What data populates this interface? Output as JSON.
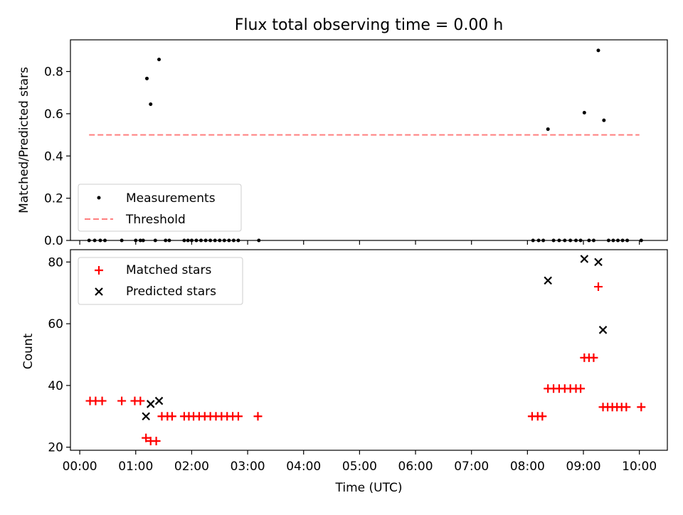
{
  "title": "Flux total observing time = 0.00 h",
  "colors": {
    "measurement": "#000000",
    "threshold": "#ff7f7f",
    "matched": "#ff0000",
    "predicted": "#000000"
  },
  "chart_data": [
    {
      "type": "scatter",
      "panel": "top",
      "title": "Flux total observing time = 0.00 h",
      "xlabel": "",
      "ylabel": "Matched/Predicted stars",
      "xlim": [
        "23:50",
        "10:30"
      ],
      "ylim": [
        0,
        0.95
      ],
      "yticks": [
        0.0,
        0.2,
        0.4,
        0.6,
        0.8
      ],
      "ytick_labels": [
        "0.0",
        "0.2",
        "0.4",
        "0.6",
        "0.8"
      ],
      "legend_position": "lower-left",
      "series": [
        {
          "name": "Measurements",
          "kind": "points",
          "points": [
            {
              "x": "00:10",
              "y": 0
            },
            {
              "x": "00:16",
              "y": 0
            },
            {
              "x": "00:22",
              "y": 0
            },
            {
              "x": "00:27",
              "y": 0
            },
            {
              "x": "00:45",
              "y": 0
            },
            {
              "x": "01:00",
              "y": 0
            },
            {
              "x": "01:05",
              "y": 0
            },
            {
              "x": "01:08",
              "y": 0
            },
            {
              "x": "01:12",
              "y": 0.767
            },
            {
              "x": "01:16",
              "y": 0.645
            },
            {
              "x": "01:21",
              "y": 0
            },
            {
              "x": "01:25",
              "y": 0.857
            },
            {
              "x": "01:32",
              "y": 0
            },
            {
              "x": "01:36",
              "y": 0
            },
            {
              "x": "01:52",
              "y": 0
            },
            {
              "x": "01:56",
              "y": 0
            },
            {
              "x": "02:00",
              "y": 0
            },
            {
              "x": "02:05",
              "y": 0
            },
            {
              "x": "02:10",
              "y": 0
            },
            {
              "x": "02:15",
              "y": 0
            },
            {
              "x": "02:20",
              "y": 0
            },
            {
              "x": "02:25",
              "y": 0
            },
            {
              "x": "02:30",
              "y": 0
            },
            {
              "x": "02:35",
              "y": 0
            },
            {
              "x": "02:40",
              "y": 0
            },
            {
              "x": "02:45",
              "y": 0
            },
            {
              "x": "02:50",
              "y": 0
            },
            {
              "x": "03:12",
              "y": 0
            },
            {
              "x": "08:06",
              "y": 0
            },
            {
              "x": "08:12",
              "y": 0
            },
            {
              "x": "08:17",
              "y": 0
            },
            {
              "x": "08:22",
              "y": 0.527
            },
            {
              "x": "08:28",
              "y": 0
            },
            {
              "x": "08:34",
              "y": 0
            },
            {
              "x": "08:40",
              "y": 0
            },
            {
              "x": "08:46",
              "y": 0
            },
            {
              "x": "08:52",
              "y": 0
            },
            {
              "x": "08:57",
              "y": 0
            },
            {
              "x": "09:01",
              "y": 0.605
            },
            {
              "x": "09:06",
              "y": 0
            },
            {
              "x": "09:11",
              "y": 0
            },
            {
              "x": "09:16",
              "y": 0.9
            },
            {
              "x": "09:22",
              "y": 0.569
            },
            {
              "x": "09:27",
              "y": 0
            },
            {
              "x": "09:32",
              "y": 0
            },
            {
              "x": "09:37",
              "y": 0
            },
            {
              "x": "09:42",
              "y": 0
            },
            {
              "x": "09:47",
              "y": 0
            },
            {
              "x": "10:02",
              "y": 0
            }
          ]
        },
        {
          "name": "Threshold",
          "kind": "line",
          "points": [
            {
              "x": "00:10",
              "y": 0.5
            },
            {
              "x": "10:00",
              "y": 0.5
            }
          ]
        }
      ]
    },
    {
      "type": "scatter",
      "panel": "bottom",
      "xlabel": "Time (UTC)",
      "ylabel": "Count",
      "xlim": [
        "23:50",
        "10:30"
      ],
      "ylim": [
        19,
        84
      ],
      "xticks": [
        "00:00",
        "01:00",
        "02:00",
        "03:00",
        "04:00",
        "05:00",
        "06:00",
        "07:00",
        "08:00",
        "09:00",
        "10:00"
      ],
      "yticks": [
        20,
        40,
        60,
        80
      ],
      "ytick_labels": [
        "20",
        "40",
        "60",
        "80"
      ],
      "legend_position": "upper-left",
      "series": [
        {
          "name": "Matched stars",
          "kind": "plus",
          "points": [
            {
              "x": "00:11",
              "y": 35
            },
            {
              "x": "00:17",
              "y": 35
            },
            {
              "x": "00:24",
              "y": 35
            },
            {
              "x": "00:45",
              "y": 35
            },
            {
              "x": "00:59",
              "y": 35
            },
            {
              "x": "01:05",
              "y": 35
            },
            {
              "x": "01:11",
              "y": 23
            },
            {
              "x": "01:16",
              "y": 22
            },
            {
              "x": "01:22",
              "y": 22
            },
            {
              "x": "01:28",
              "y": 30
            },
            {
              "x": "01:34",
              "y": 30
            },
            {
              "x": "01:39",
              "y": 30
            },
            {
              "x": "01:52",
              "y": 30
            },
            {
              "x": "01:57",
              "y": 30
            },
            {
              "x": "02:02",
              "y": 30
            },
            {
              "x": "02:08",
              "y": 30
            },
            {
              "x": "02:14",
              "y": 30
            },
            {
              "x": "02:20",
              "y": 30
            },
            {
              "x": "02:26",
              "y": 30
            },
            {
              "x": "02:32",
              "y": 30
            },
            {
              "x": "02:38",
              "y": 30
            },
            {
              "x": "02:44",
              "y": 30
            },
            {
              "x": "02:50",
              "y": 30
            },
            {
              "x": "03:11",
              "y": 30
            },
            {
              "x": "08:05",
              "y": 30
            },
            {
              "x": "08:11",
              "y": 30
            },
            {
              "x": "08:16",
              "y": 30
            },
            {
              "x": "08:22",
              "y": 39
            },
            {
              "x": "08:28",
              "y": 39
            },
            {
              "x": "08:34",
              "y": 39
            },
            {
              "x": "08:40",
              "y": 39
            },
            {
              "x": "08:46",
              "y": 39
            },
            {
              "x": "08:52",
              "y": 39
            },
            {
              "x": "08:57",
              "y": 39
            },
            {
              "x": "09:01",
              "y": 49
            },
            {
              "x": "09:06",
              "y": 49
            },
            {
              "x": "09:11",
              "y": 49
            },
            {
              "x": "09:16",
              "y": 72
            },
            {
              "x": "09:21",
              "y": 33
            },
            {
              "x": "09:26",
              "y": 33
            },
            {
              "x": "09:31",
              "y": 33
            },
            {
              "x": "09:36",
              "y": 33
            },
            {
              "x": "09:41",
              "y": 33
            },
            {
              "x": "09:46",
              "y": 33
            },
            {
              "x": "10:02",
              "y": 33
            }
          ]
        },
        {
          "name": "Predicted stars",
          "kind": "x",
          "points": [
            {
              "x": "01:11",
              "y": 30
            },
            {
              "x": "01:16",
              "y": 34
            },
            {
              "x": "01:25",
              "y": 35
            },
            {
              "x": "08:22",
              "y": 74
            },
            {
              "x": "09:01",
              "y": 81
            },
            {
              "x": "09:16",
              "y": 80
            },
            {
              "x": "09:21",
              "y": 58
            }
          ]
        }
      ]
    }
  ]
}
